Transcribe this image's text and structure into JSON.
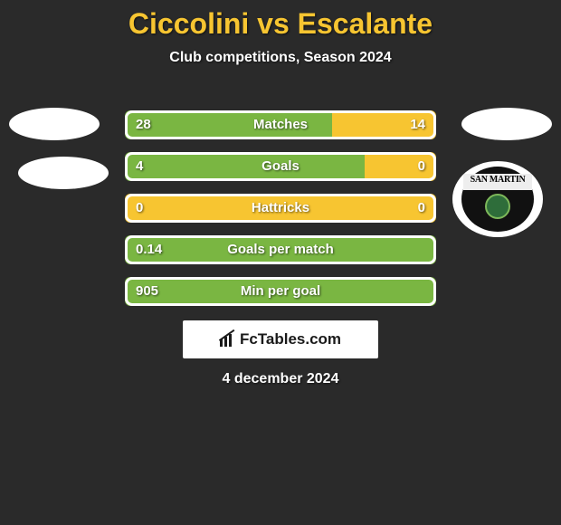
{
  "title": "Ciccolini vs Escalante",
  "subtitle": "Club competitions, Season 2024",
  "brand": "FcTables.com",
  "date": "4 december 2024",
  "colors": {
    "accent_title": "#f7c531",
    "bar_left": "#7ab642",
    "bar_right": "#f7c531",
    "bg": "#2a2a2a",
    "border": "#ffffff"
  },
  "club_right": {
    "name": "San Martin",
    "ribbon_text": "SAN MARTIN"
  },
  "stats": [
    {
      "label": "Matches",
      "left_value": "28",
      "right_value": "14",
      "left_pct": 66.7,
      "right_pct": 33.3
    },
    {
      "label": "Goals",
      "left_value": "4",
      "right_value": "0",
      "left_pct": 77,
      "right_pct": 23
    },
    {
      "label": "Hattricks",
      "left_value": "0",
      "right_value": "0",
      "left_pct": 0,
      "right_pct": 100
    },
    {
      "label": "Goals per match",
      "left_value": "0.14",
      "right_value": "",
      "left_pct": 100,
      "right_pct": 0
    },
    {
      "label": "Min per goal",
      "left_value": "905",
      "right_value": "",
      "left_pct": 100,
      "right_pct": 0
    }
  ]
}
